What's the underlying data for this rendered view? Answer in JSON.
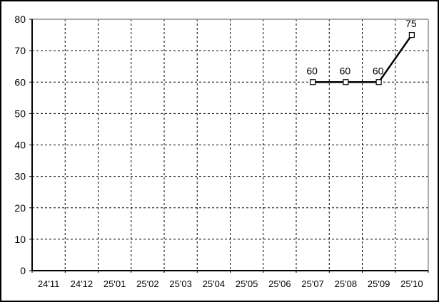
{
  "window": {
    "background_color": "#ffffff",
    "border_color": "#000000"
  },
  "chart_data": {
    "type": "line",
    "title": "",
    "xlabel": "",
    "ylabel": "",
    "categories": [
      "24'11",
      "24'12",
      "25'01",
      "25'02",
      "25'03",
      "25'04",
      "25'05",
      "25'06",
      "25'07",
      "25'08",
      "25'09",
      "25'10"
    ],
    "series": [
      {
        "name": "series-1",
        "values": [
          null,
          null,
          null,
          null,
          null,
          null,
          null,
          null,
          60,
          60,
          60,
          75
        ],
        "color": "#000000",
        "marker": "open-square",
        "data_labels": [
          "",
          "",
          "",
          "",
          "",
          "",
          "",
          "",
          "60",
          "60",
          "60",
          "75"
        ]
      }
    ],
    "ylim": [
      0,
      80
    ],
    "ytick_interval": 10,
    "ytick_labels": [
      "0",
      "10",
      "20",
      "30",
      "40",
      "50",
      "60",
      "70",
      "80"
    ],
    "grid": "dashed",
    "grid_on": true,
    "grid_color": "#000000",
    "axis_color": "#000000",
    "plot_border_top_right_color": "#909090",
    "marker_fill": "#ffffff",
    "legend": "none",
    "label_font_color": "#000000"
  }
}
